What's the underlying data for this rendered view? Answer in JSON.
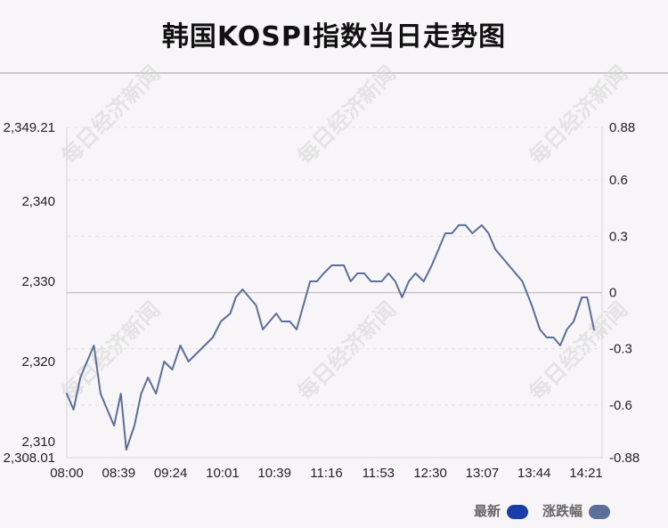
{
  "title": "韩国KOSPI指数当日走势图",
  "watermark": "每日经济新闻",
  "legend": {
    "items": [
      {
        "label": "最新",
        "color": "#1a3ea8"
      },
      {
        "label": "涨跌幅",
        "color": "#5b7099"
      }
    ]
  },
  "chart_data": {
    "type": "line",
    "title": "韩国KOSPI指数当日走势图",
    "x_ticks": [
      "08:00",
      "08:39",
      "09:24",
      "10:01",
      "10:39",
      "11:16",
      "11:53",
      "12:30",
      "13:07",
      "13:44",
      "14:21"
    ],
    "y_left_ticks": [
      {
        "value": 2308.01,
        "label": "2,308.01"
      },
      {
        "value": 2310,
        "label": "2,310"
      },
      {
        "value": 2320,
        "label": "2,320"
      },
      {
        "value": 2330,
        "label": "2,330"
      },
      {
        "value": 2340,
        "label": "2,340"
      },
      {
        "value": 2349.21,
        "label": "2,349.21"
      }
    ],
    "y_right_ticks": [
      {
        "value": -0.88,
        "label": "-0.88"
      },
      {
        "value": -0.6,
        "label": "-0.6"
      },
      {
        "value": -0.3,
        "label": "-0.3"
      },
      {
        "value": 0,
        "label": "0"
      },
      {
        "value": 0.3,
        "label": "0.3"
      },
      {
        "value": 0.6,
        "label": "0.6"
      },
      {
        "value": 0.88,
        "label": "0.88"
      }
    ],
    "ylim_left": [
      2308.01,
      2349.21
    ],
    "ylim_right": [
      -0.88,
      0.88
    ],
    "reference_level": 2328.6,
    "grid": "horizontal-dashed",
    "legend_position": "bottom-right",
    "series": [
      {
        "color": "#5b7099",
        "x": [
          "08:00",
          "08:05",
          "08:10",
          "08:15",
          "08:20",
          "08:25",
          "08:30",
          "08:35",
          "08:40",
          "08:44",
          "08:50",
          "08:55",
          "09:00",
          "09:06",
          "09:12",
          "09:18",
          "09:24",
          "09:30",
          "09:36",
          "09:42",
          "09:48",
          "09:54",
          "10:01",
          "10:05",
          "10:10",
          "10:15",
          "10:20",
          "10:25",
          "10:30",
          "10:35",
          "10:39",
          "10:45",
          "10:50",
          "10:55",
          "11:00",
          "11:05",
          "11:10",
          "11:16",
          "11:20",
          "11:25",
          "11:30",
          "11:35",
          "11:40",
          "11:45",
          "11:53",
          "11:58",
          "12:03",
          "12:08",
          "12:13",
          "12:18",
          "12:24",
          "12:30",
          "12:35",
          "12:40",
          "12:45",
          "12:50",
          "12:55",
          "13:00",
          "13:07",
          "13:12",
          "13:17",
          "13:22",
          "13:27",
          "13:32",
          "13:37",
          "13:44",
          "13:50",
          "13:55",
          "14:00",
          "14:05",
          "14:10",
          "14:15",
          "14:21",
          "14:25",
          "14:30"
        ],
        "y": [
          2316,
          2314,
          2318,
          2320,
          2322,
          2316,
          2314,
          2312,
          2316,
          2309,
          2312,
          2316,
          2318,
          2316,
          2320,
          2319,
          2322,
          2320,
          2321,
          2322,
          2323,
          2325,
          2326,
          2328,
          2329,
          2328,
          2327,
          2324,
          2325,
          2326,
          2325,
          2325,
          2324,
          2327,
          2330,
          2330,
          2331,
          2332,
          2332,
          2332,
          2330,
          2331,
          2331,
          2330,
          2330,
          2331,
          2330,
          2328,
          2330,
          2331,
          2330,
          2332,
          2334,
          2336,
          2336,
          2337,
          2337,
          2336,
          2337,
          2336,
          2334,
          2333,
          2332,
          2331,
          2330,
          2327,
          2324,
          2323,
          2323,
          2322,
          2324,
          2325,
          2328,
          2328,
          2324
        ]
      }
    ]
  }
}
